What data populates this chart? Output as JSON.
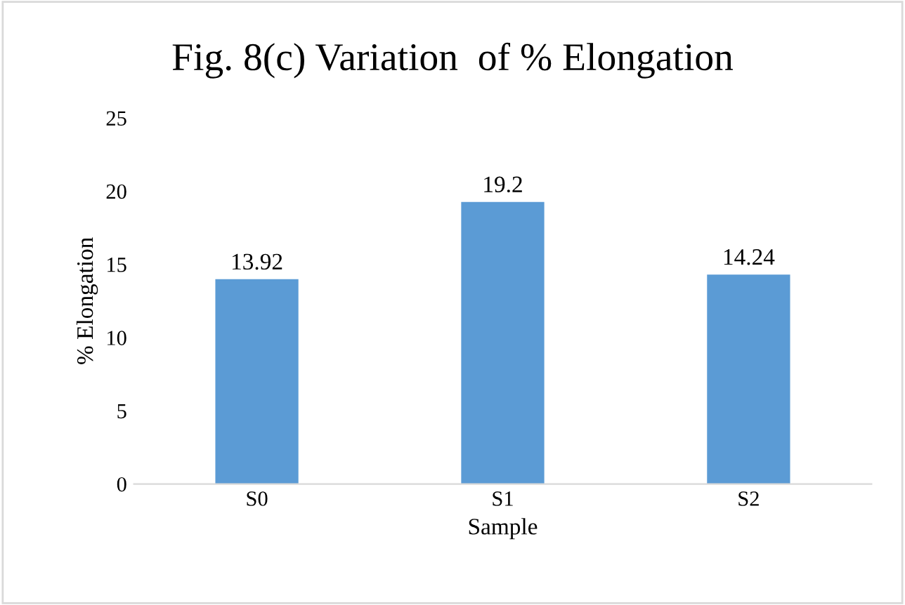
{
  "chart_data": {
    "type": "bar",
    "title": "Fig. 8(c) Variation  of % Elongation",
    "xlabel": "Sample",
    "ylabel": "% Elongation",
    "categories": [
      "S0",
      "S1",
      "S2"
    ],
    "values": [
      13.92,
      19.2,
      14.24
    ],
    "color": "#5b9bd5",
    "ylim": [
      0,
      25
    ],
    "yticks": [
      0,
      5,
      10,
      15,
      20,
      25
    ],
    "data_labels": true,
    "grid": false
  }
}
